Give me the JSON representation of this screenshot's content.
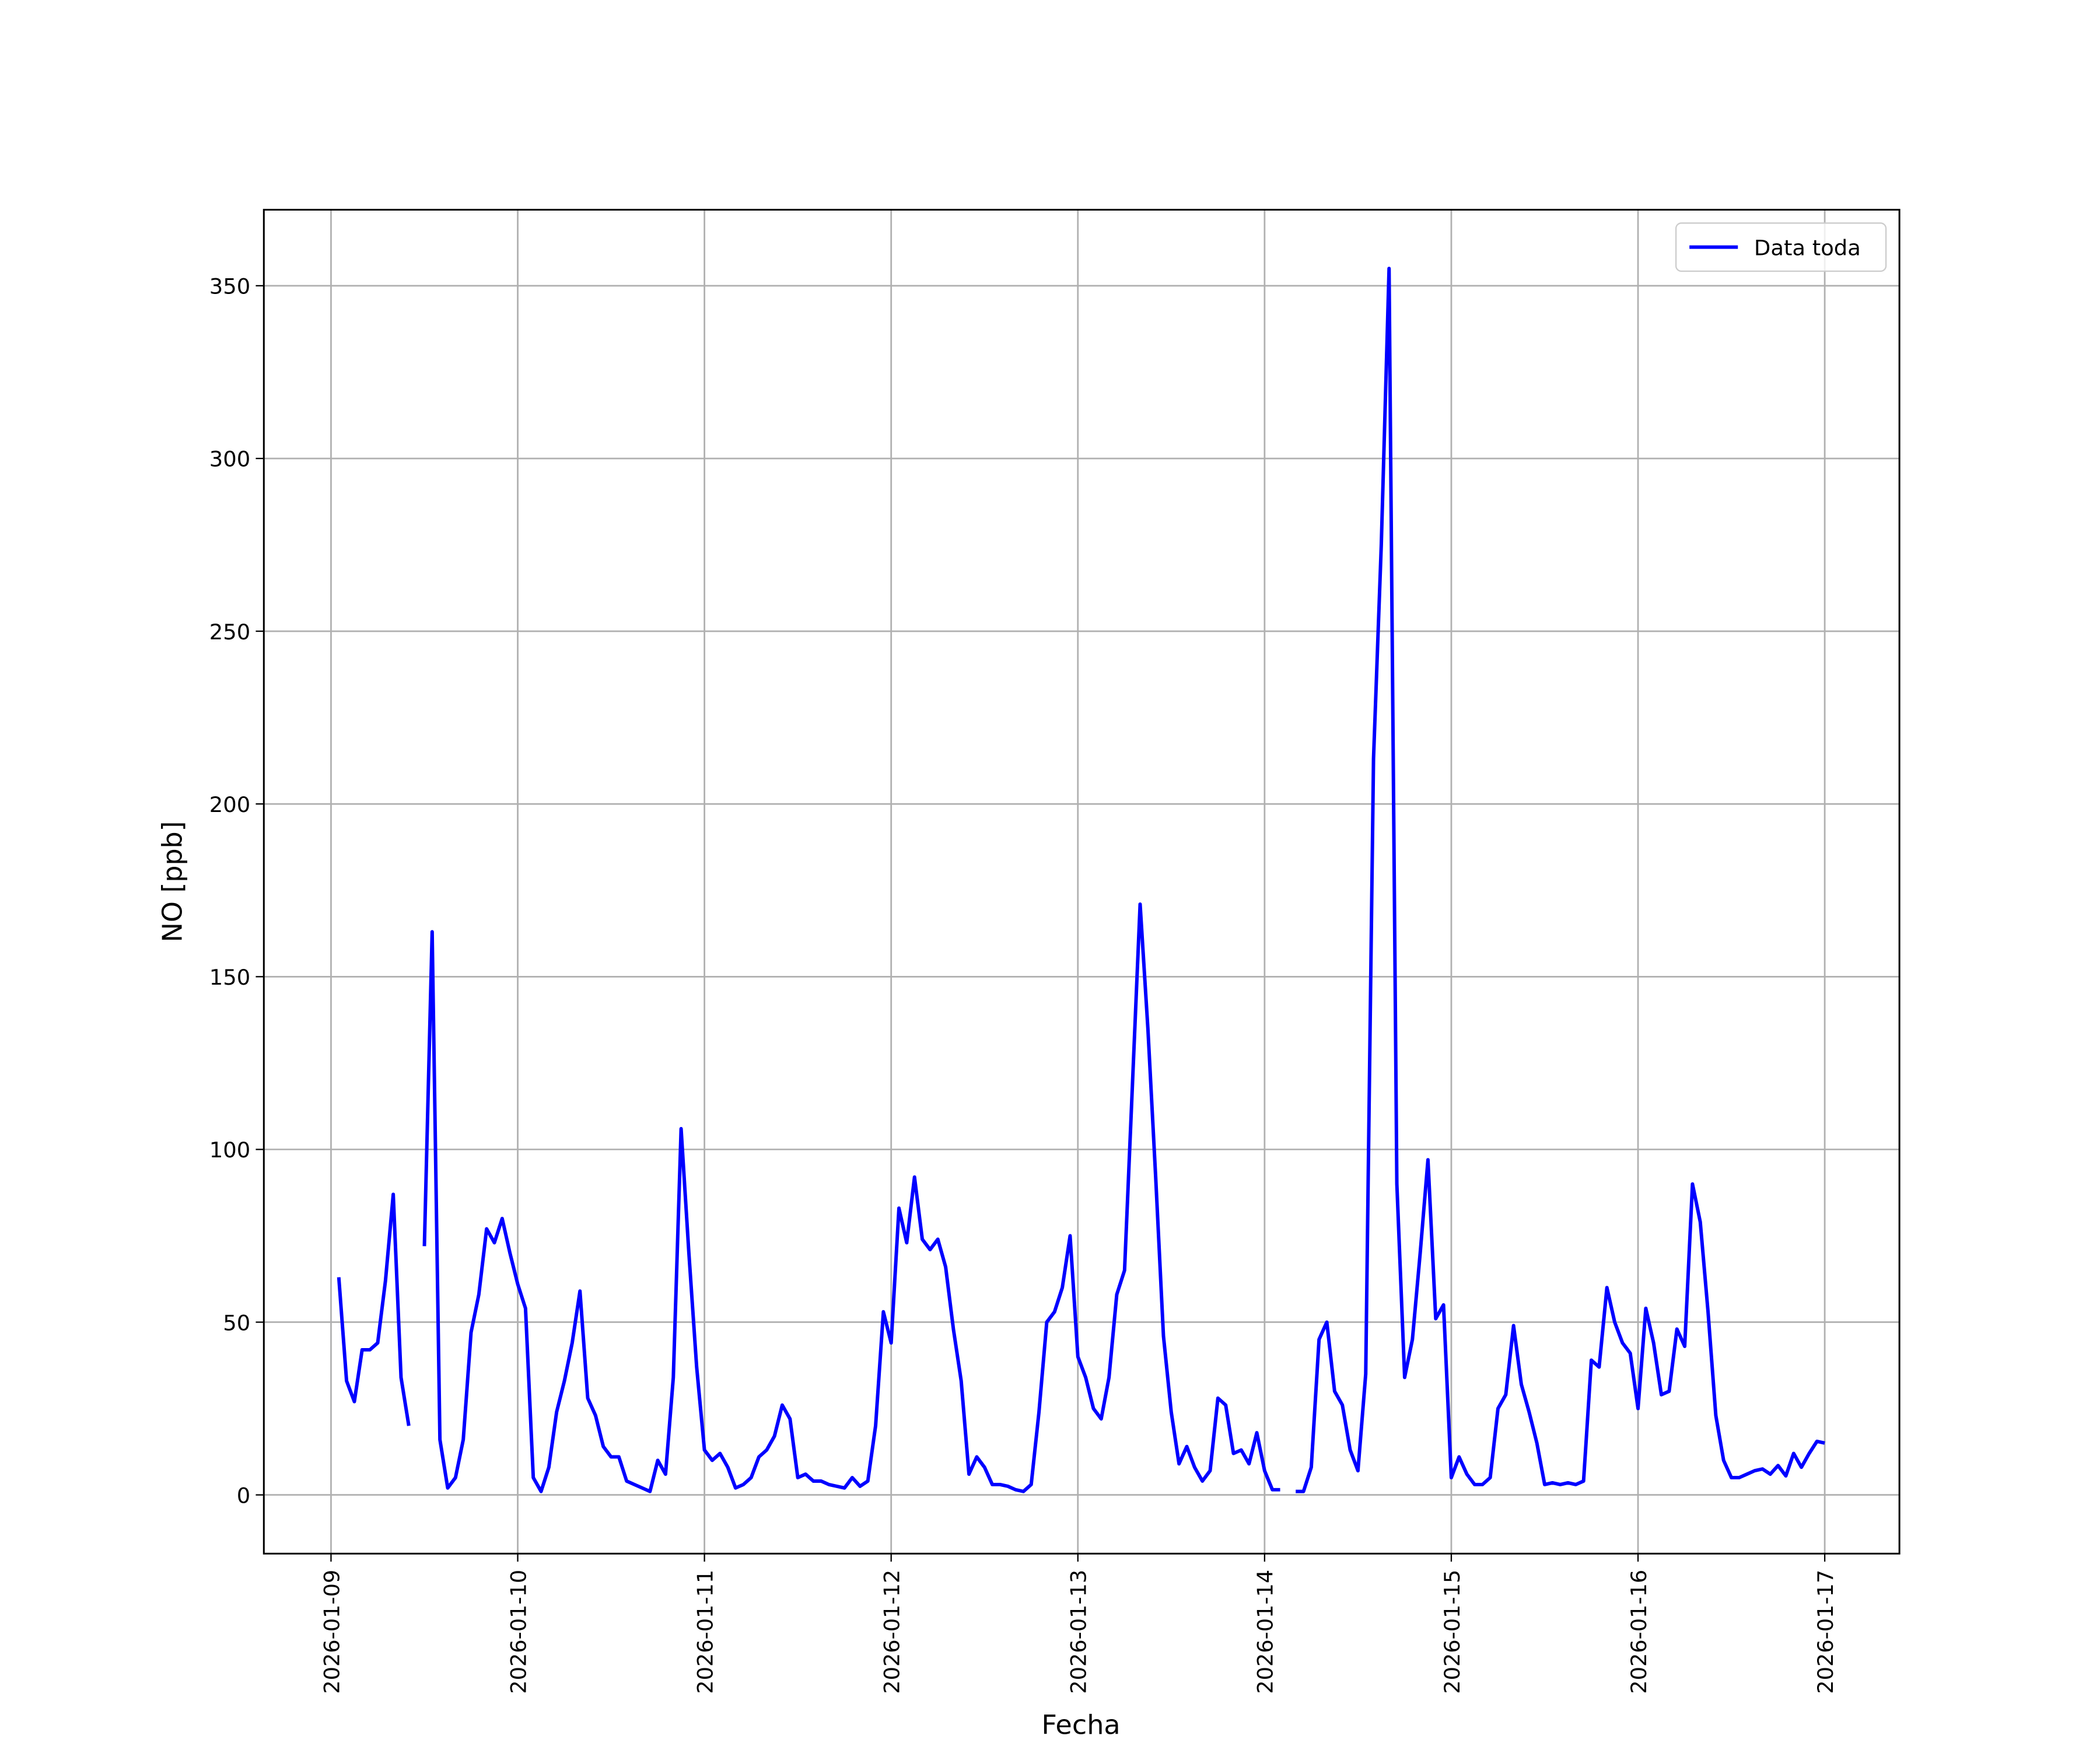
{
  "chart_data": {
    "type": "line",
    "xlabel": "Fecha",
    "ylabel": "NO [ppb]",
    "x": [
      "2026-01-09 01:00",
      "2026-01-09 02:00",
      "2026-01-09 03:00",
      "2026-01-09 04:00",
      "2026-01-09 05:00",
      "2026-01-09 06:00",
      "2026-01-09 07:00",
      "2026-01-09 08:00",
      "2026-01-09 09:00",
      "2026-01-09 10:00",
      "2026-01-09 11:00",
      "2026-01-09 12:00",
      "2026-01-09 13:00",
      "2026-01-09 14:00",
      "2026-01-09 15:00",
      "2026-01-09 16:00",
      "2026-01-09 17:00",
      "2026-01-09 18:00",
      "2026-01-09 19:00",
      "2026-01-09 20:00",
      "2026-01-09 21:00",
      "2026-01-09 22:00",
      "2026-01-09 23:00",
      "2026-01-10 00:00",
      "2026-01-10 01:00",
      "2026-01-10 02:00",
      "2026-01-10 03:00",
      "2026-01-10 04:00",
      "2026-01-10 05:00",
      "2026-01-10 06:00",
      "2026-01-10 07:00",
      "2026-01-10 08:00",
      "2026-01-10 09:00",
      "2026-01-10 10:00",
      "2026-01-10 11:00",
      "2026-01-10 12:00",
      "2026-01-10 13:00",
      "2026-01-10 14:00",
      "2026-01-10 15:00",
      "2026-01-10 16:00",
      "2026-01-10 17:00",
      "2026-01-10 18:00",
      "2026-01-10 19:00",
      "2026-01-10 20:00",
      "2026-01-10 21:00",
      "2026-01-10 22:00",
      "2026-01-10 23:00",
      "2026-01-11 00:00",
      "2026-01-11 01:00",
      "2026-01-11 02:00",
      "2026-01-11 03:00",
      "2026-01-11 04:00",
      "2026-01-11 05:00",
      "2026-01-11 06:00",
      "2026-01-11 07:00",
      "2026-01-11 08:00",
      "2026-01-11 09:00",
      "2026-01-11 10:00",
      "2026-01-11 11:00",
      "2026-01-11 12:00",
      "2026-01-11 13:00",
      "2026-01-11 14:00",
      "2026-01-11 15:00",
      "2026-01-11 16:00",
      "2026-01-11 17:00",
      "2026-01-11 18:00",
      "2026-01-11 19:00",
      "2026-01-11 20:00",
      "2026-01-11 21:00",
      "2026-01-11 22:00",
      "2026-01-11 23:00",
      "2026-01-12 00:00",
      "2026-01-12 01:00",
      "2026-01-12 02:00",
      "2026-01-12 03:00",
      "2026-01-12 04:00",
      "2026-01-12 05:00",
      "2026-01-12 06:00",
      "2026-01-12 07:00",
      "2026-01-12 08:00",
      "2026-01-12 09:00",
      "2026-01-12 10:00",
      "2026-01-12 11:00",
      "2026-01-12 12:00",
      "2026-01-12 13:00",
      "2026-01-12 14:00",
      "2026-01-12 15:00",
      "2026-01-12 16:00",
      "2026-01-12 17:00",
      "2026-01-12 18:00",
      "2026-01-12 19:00",
      "2026-01-12 20:00",
      "2026-01-12 21:00",
      "2026-01-12 22:00",
      "2026-01-12 23:00",
      "2026-01-13 00:00",
      "2026-01-13 01:00",
      "2026-01-13 02:00",
      "2026-01-13 03:00",
      "2026-01-13 04:00",
      "2026-01-13 05:00",
      "2026-01-13 06:00",
      "2026-01-13 07:00",
      "2026-01-13 08:00",
      "2026-01-13 09:00",
      "2026-01-13 10:00",
      "2026-01-13 11:00",
      "2026-01-13 12:00",
      "2026-01-13 13:00",
      "2026-01-13 14:00",
      "2026-01-13 15:00",
      "2026-01-13 16:00",
      "2026-01-13 17:00",
      "2026-01-13 18:00",
      "2026-01-13 19:00",
      "2026-01-13 20:00",
      "2026-01-13 21:00",
      "2026-01-13 22:00",
      "2026-01-13 23:00",
      "2026-01-14 00:00",
      "2026-01-14 01:00",
      "2026-01-14 02:00",
      "2026-01-14 03:00",
      "2026-01-14 04:00",
      "2026-01-14 05:00",
      "2026-01-14 06:00",
      "2026-01-14 07:00",
      "2026-01-14 08:00",
      "2026-01-14 09:00",
      "2026-01-14 10:00",
      "2026-01-14 11:00",
      "2026-01-14 12:00",
      "2026-01-14 13:00",
      "2026-01-14 14:00",
      "2026-01-14 15:00",
      "2026-01-14 16:00",
      "2026-01-14 17:00",
      "2026-01-14 18:00",
      "2026-01-14 19:00",
      "2026-01-14 20:00",
      "2026-01-14 21:00",
      "2026-01-14 22:00",
      "2026-01-14 23:00",
      "2026-01-15 00:00",
      "2026-01-15 01:00",
      "2026-01-15 02:00",
      "2026-01-15 03:00",
      "2026-01-15 04:00",
      "2026-01-15 05:00",
      "2026-01-15 06:00",
      "2026-01-15 07:00",
      "2026-01-15 08:00",
      "2026-01-15 09:00",
      "2026-01-15 10:00",
      "2026-01-15 11:00",
      "2026-01-15 12:00",
      "2026-01-15 13:00",
      "2026-01-15 14:00",
      "2026-01-15 15:00",
      "2026-01-15 16:00",
      "2026-01-15 17:00",
      "2026-01-15 18:00",
      "2026-01-15 19:00",
      "2026-01-15 20:00",
      "2026-01-15 21:00",
      "2026-01-15 22:00",
      "2026-01-15 23:00",
      "2026-01-16 00:00",
      "2026-01-16 01:00",
      "2026-01-16 02:00",
      "2026-01-16 03:00",
      "2026-01-16 04:00",
      "2026-01-16 05:00",
      "2026-01-16 06:00",
      "2026-01-16 07:00",
      "2026-01-16 08:00",
      "2026-01-16 09:00",
      "2026-01-16 10:00",
      "2026-01-16 11:00",
      "2026-01-16 12:00",
      "2026-01-16 13:00",
      "2026-01-16 14:00",
      "2026-01-16 15:00",
      "2026-01-16 16:00",
      "2026-01-16 17:00",
      "2026-01-16 18:00",
      "2026-01-16 19:00",
      "2026-01-16 20:00",
      "2026-01-16 21:00",
      "2026-01-16 22:00",
      "2026-01-16 23:00",
      "2026-01-17 00:00"
    ],
    "series": [
      {
        "name": "Data toda",
        "color": "#0000ff",
        "values": [
          63,
          33,
          27,
          42,
          42,
          44,
          62,
          87,
          34,
          20,
          null,
          72,
          163,
          16,
          2,
          5,
          16,
          47,
          58,
          77,
          73,
          80,
          70,
          61,
          54,
          5,
          1,
          8,
          24,
          33,
          44,
          59,
          28,
          23,
          14,
          11,
          11,
          4,
          3,
          2,
          1,
          10,
          6,
          34,
          106,
          70,
          37,
          13,
          10,
          12,
          8,
          2,
          3,
          5,
          11,
          13,
          17,
          26,
          22,
          5,
          6,
          4,
          4,
          3,
          2.5,
          2,
          5,
          2.5,
          4,
          20,
          53,
          44,
          83,
          73,
          92,
          74,
          71,
          74,
          66,
          48,
          33,
          6,
          11,
          8,
          3,
          3,
          2.5,
          1.5,
          1,
          3,
          24,
          50,
          53,
          60,
          75,
          40,
          34,
          25,
          22,
          34,
          58,
          65,
          118,
          171,
          135,
          92,
          46,
          24,
          9,
          14,
          8,
          4,
          7,
          28,
          26,
          12,
          13,
          9,
          18,
          7,
          1.5,
          1.5,
          null,
          1,
          1,
          8,
          45,
          50,
          30,
          26,
          13,
          7,
          35,
          213,
          275,
          355,
          90,
          34,
          45,
          70,
          97,
          51,
          55,
          5,
          11,
          6,
          3,
          3,
          5,
          25,
          29,
          49,
          32,
          24,
          15,
          3,
          3.5,
          3,
          3.5,
          3,
          4,
          39,
          37,
          60,
          50,
          44,
          41,
          25,
          54,
          44,
          29,
          30,
          48,
          43,
          90,
          79,
          53,
          23,
          10,
          5,
          5,
          6,
          7,
          7.5,
          6,
          8.5,
          5.5,
          12,
          8,
          12,
          15.5,
          15
        ]
      }
    ],
    "xlim": [
      "2026-01-08 15:22",
      "2026-01-17 09:36"
    ],
    "xticks": [
      "2026-01-09",
      "2026-01-10",
      "2026-01-11",
      "2026-01-12",
      "2026-01-13",
      "2026-01-14",
      "2026-01-15",
      "2026-01-16",
      "2026-01-17"
    ],
    "ylim": [
      -17,
      372
    ],
    "yticks": [
      0,
      50,
      100,
      150,
      200,
      250,
      300,
      350
    ],
    "grid": true,
    "legend": "upper right"
  }
}
